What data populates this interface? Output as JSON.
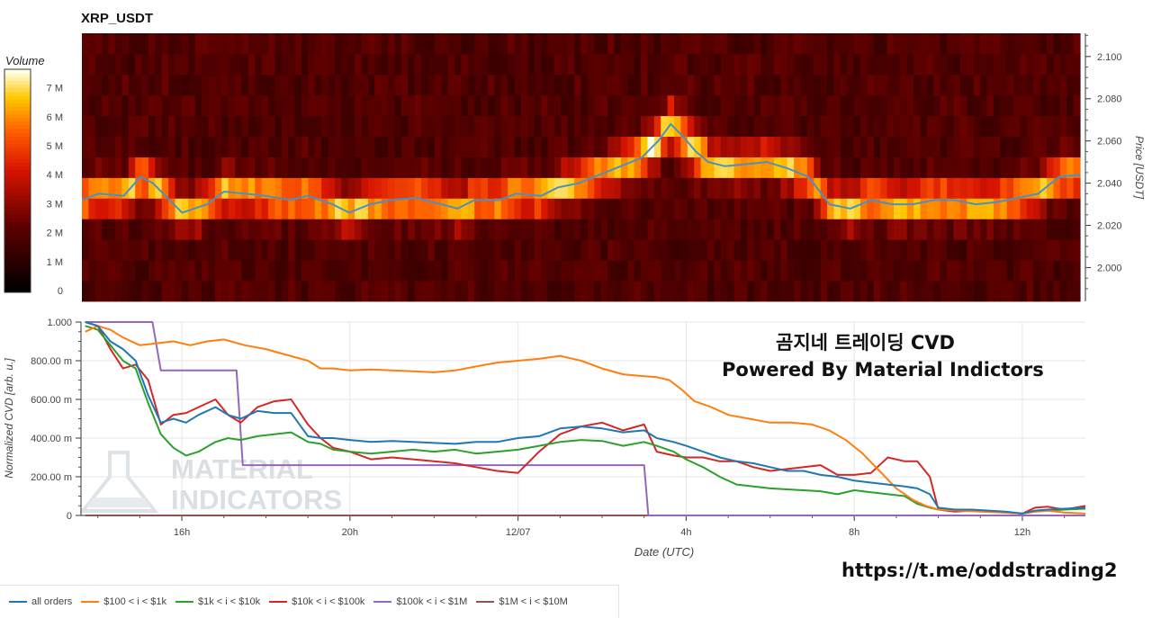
{
  "title": "XRP_USDT",
  "colorbar": {
    "label": "Volume",
    "ticks": [
      {
        "label": "0",
        "value": 0
      },
      {
        "label": "1 M",
        "value": 1
      },
      {
        "label": "2 M",
        "value": 2
      },
      {
        "label": "3 M",
        "value": 3
      },
      {
        "label": "4 M",
        "value": 4
      },
      {
        "label": "5 M",
        "value": 5
      },
      {
        "label": "6 M",
        "value": 6
      },
      {
        "label": "7 M",
        "value": 7
      }
    ],
    "range": [
      0,
      7.7
    ]
  },
  "watermark": {
    "line1": "MATERIAL",
    "line2": "INDICATORS"
  },
  "overlay": {
    "korean_title": "곰지네 트레이딩 CVD",
    "powered_by": "Powered By Material Indictors",
    "url": "https://t.me/oddstrading2"
  },
  "colors": {
    "all_orders": "#1f77b4",
    "b100_1k": "#ff7f0e",
    "b1k_10k": "#2ca02c",
    "b10k_100k": "#d62728",
    "b100k_1m": "#9467bd",
    "b1m_10m": "#8c564b",
    "price_line": "#4a90c8"
  },
  "chart_data": [
    {
      "type": "heatmap",
      "title": "XRP_USDT",
      "ylabel": "Price [USDT]",
      "yticks": [
        "2.000",
        "2.020",
        "2.040",
        "2.060",
        "2.080",
        "2.100"
      ],
      "ylim": [
        1.984,
        2.111
      ],
      "xlim": [
        13.6,
        37.5
      ],
      "colorbar_label": "Volume",
      "price_line": {
        "x": [
          13.6,
          14.0,
          14.6,
          15.0,
          15.3,
          15.7,
          16.0,
          16.6,
          17.0,
          17.5,
          18.0,
          18.6,
          19.0,
          19.6,
          20.0,
          20.5,
          21.0,
          21.6,
          22.0,
          22.6,
          23.0,
          23.6,
          24.0,
          24.6,
          25.0,
          25.5,
          26.0,
          26.5,
          27.0,
          27.4,
          27.7,
          28.0,
          28.3,
          28.6,
          29.0,
          29.5,
          30.0,
          30.5,
          31.0,
          31.5,
          32.0,
          32.5,
          33.0,
          33.5,
          34.0,
          34.5,
          35.0,
          35.5,
          36.0,
          36.5,
          37.0,
          37.5
        ],
        "y": [
          2.032,
          2.035,
          2.034,
          2.043,
          2.04,
          2.032,
          2.026,
          2.03,
          2.036,
          2.035,
          2.034,
          2.032,
          2.034,
          2.03,
          2.026,
          2.03,
          2.032,
          2.033,
          2.031,
          2.028,
          2.032,
          2.032,
          2.035,
          2.034,
          2.038,
          2.04,
          2.044,
          2.048,
          2.052,
          2.06,
          2.068,
          2.062,
          2.055,
          2.05,
          2.048,
          2.049,
          2.05,
          2.047,
          2.043,
          2.03,
          2.028,
          2.032,
          2.03,
          2.03,
          2.032,
          2.032,
          2.03,
          2.031,
          2.033,
          2.035,
          2.043,
          2.044
        ]
      }
    },
    {
      "type": "line",
      "xlabel": "Date (UTC)",
      "ylabel": "Normalized CVD [arb. u.]",
      "xlim": [
        13.6,
        37.5
      ],
      "ylim": [
        0,
        1000
      ],
      "xticks": [
        {
          "label": "16h",
          "value": 16
        },
        {
          "label": "20h",
          "value": 20
        },
        {
          "label": "12/07",
          "value": 24
        },
        {
          "label": "4h",
          "value": 28
        },
        {
          "label": "8h",
          "value": 32
        },
        {
          "label": "12h",
          "value": 36
        }
      ],
      "yticks": [
        {
          "label": "0",
          "value": 0
        },
        {
          "label": "200.00 m",
          "value": 200
        },
        {
          "label": "400.00 m",
          "value": 400
        },
        {
          "label": "600.00 m",
          "value": 600
        },
        {
          "label": "800.00 m",
          "value": 800
        },
        {
          "label": "1.000",
          "value": 1000
        }
      ],
      "legend_position": "bottom",
      "series": [
        {
          "name": "all orders",
          "color_key": "all_orders",
          "x": [
            13.7,
            14.0,
            14.3,
            14.6,
            14.9,
            15.2,
            15.5,
            15.8,
            16.1,
            16.4,
            16.8,
            17.1,
            17.4,
            17.8,
            18.2,
            18.6,
            19.0,
            19.3,
            19.6,
            20.0,
            20.5,
            21.0,
            21.5,
            22.0,
            22.5,
            23.0,
            23.5,
            24.0,
            24.5,
            25.0,
            25.5,
            26.0,
            26.5,
            27.0,
            27.3,
            27.7,
            28.0,
            28.4,
            28.8,
            29.2,
            29.6,
            30.0,
            30.4,
            30.8,
            31.2,
            31.6,
            32.0,
            32.4,
            32.8,
            33.2,
            33.5,
            33.8,
            34.0,
            34.4,
            34.8,
            35.2,
            35.6,
            36.0,
            36.3,
            36.6,
            37.0,
            37.5
          ],
          "y": [
            1000,
            980,
            900,
            860,
            800,
            620,
            480,
            500,
            480,
            520,
            560,
            520,
            500,
            540,
            530,
            530,
            410,
            400,
            400,
            390,
            380,
            385,
            380,
            375,
            370,
            380,
            380,
            400,
            410,
            450,
            460,
            450,
            430,
            440,
            400,
            380,
            360,
            330,
            300,
            280,
            270,
            250,
            230,
            230,
            210,
            200,
            180,
            170,
            160,
            150,
            140,
            110,
            40,
            30,
            30,
            25,
            20,
            10,
            25,
            30,
            35,
            40
          ]
        },
        {
          "name": "$100 < i < $1k",
          "color_key": "b100_1k",
          "x": [
            13.7,
            14.0,
            14.3,
            14.6,
            15.0,
            15.4,
            15.8,
            16.2,
            16.6,
            17.0,
            17.5,
            18.0,
            18.5,
            19.0,
            19.3,
            19.6,
            20.0,
            20.5,
            21.0,
            21.5,
            22.0,
            22.5,
            23.0,
            23.5,
            24.0,
            24.5,
            25.0,
            25.5,
            26.0,
            26.5,
            27.0,
            27.3,
            27.6,
            27.9,
            28.2,
            28.6,
            29.0,
            29.5,
            30.0,
            30.5,
            31.0,
            31.4,
            31.8,
            32.2,
            32.6,
            33.0,
            33.4,
            33.7,
            34.0,
            34.5,
            35.0,
            35.5,
            36.0,
            36.3,
            36.6,
            37.0,
            37.5
          ],
          "y": [
            950,
            980,
            960,
            920,
            880,
            890,
            900,
            880,
            900,
            910,
            880,
            860,
            830,
            800,
            760,
            760,
            750,
            755,
            750,
            745,
            740,
            750,
            770,
            790,
            800,
            810,
            825,
            800,
            760,
            730,
            720,
            715,
            700,
            650,
            590,
            560,
            520,
            500,
            480,
            480,
            470,
            440,
            390,
            320,
            230,
            140,
            80,
            50,
            30,
            25,
            20,
            15,
            10,
            20,
            25,
            15,
            10
          ]
        },
        {
          "name": "$1k < i < $10k",
          "color_key": "b1k_10k",
          "x": [
            13.7,
            14.0,
            14.3,
            14.6,
            14.9,
            15.2,
            15.5,
            15.8,
            16.1,
            16.4,
            16.8,
            17.1,
            17.4,
            17.8,
            18.2,
            18.6,
            19.0,
            19.3,
            19.6,
            20.0,
            20.5,
            21.0,
            21.5,
            22.0,
            22.5,
            23.0,
            23.5,
            24.0,
            24.5,
            25.0,
            25.5,
            26.0,
            26.5,
            27.0,
            27.3,
            27.7,
            28.0,
            28.4,
            28.8,
            29.2,
            29.6,
            30.0,
            30.4,
            30.8,
            31.2,
            31.6,
            32.0,
            32.4,
            32.8,
            33.2,
            33.5,
            33.8,
            34.0,
            34.4,
            34.8,
            35.2,
            35.6,
            36.0,
            36.3,
            36.6,
            37.0,
            37.5
          ],
          "y": [
            980,
            960,
            880,
            800,
            760,
            580,
            420,
            350,
            310,
            330,
            380,
            400,
            390,
            410,
            420,
            430,
            380,
            370,
            340,
            330,
            320,
            330,
            340,
            330,
            340,
            320,
            330,
            340,
            360,
            380,
            390,
            385,
            360,
            380,
            360,
            330,
            290,
            250,
            200,
            160,
            150,
            140,
            135,
            130,
            125,
            110,
            130,
            120,
            110,
            100,
            60,
            40,
            30,
            30,
            25,
            20,
            15,
            10,
            20,
            25,
            30,
            35
          ]
        },
        {
          "name": "$10k < i < $100k",
          "color_key": "b10k_100k",
          "x": [
            13.7,
            14.0,
            14.3,
            14.6,
            14.9,
            15.2,
            15.5,
            15.8,
            16.1,
            16.4,
            16.8,
            17.1,
            17.4,
            17.8,
            18.2,
            18.6,
            19.0,
            19.3,
            19.6,
            20.0,
            20.5,
            21.0,
            21.5,
            22.0,
            22.5,
            23.0,
            23.5,
            24.0,
            24.5,
            25.0,
            25.5,
            26.0,
            26.5,
            27.0,
            27.3,
            27.7,
            28.0,
            28.4,
            28.8,
            29.2,
            29.6,
            30.0,
            30.4,
            30.8,
            31.2,
            31.6,
            32.0,
            32.4,
            32.8,
            33.2,
            33.5,
            33.8,
            34.0,
            34.4,
            34.8,
            35.2,
            35.6,
            36.0,
            36.3,
            36.6,
            37.0,
            37.5
          ],
          "y": [
            1000,
            980,
            860,
            760,
            780,
            700,
            470,
            520,
            530,
            560,
            600,
            520,
            480,
            560,
            590,
            600,
            470,
            400,
            350,
            330,
            290,
            300,
            290,
            280,
            270,
            250,
            230,
            220,
            330,
            420,
            460,
            480,
            440,
            470,
            330,
            310,
            300,
            300,
            280,
            280,
            250,
            230,
            240,
            250,
            260,
            210,
            210,
            220,
            300,
            280,
            280,
            200,
            30,
            20,
            25,
            20,
            15,
            10,
            40,
            45,
            30,
            50
          ]
        },
        {
          "name": "$100k < i < $1M",
          "color_key": "b100k_1m",
          "x": [
            13.7,
            15.3,
            15.5,
            17.3,
            17.45,
            27.0,
            27.1,
            37.5
          ],
          "y": [
            1000,
            1000,
            750,
            750,
            260,
            260,
            0,
            0
          ]
        },
        {
          "name": "$1M < i < $10M",
          "color_key": "b1m_10m",
          "x": [
            13.7,
            37.5
          ],
          "y": [
            0,
            0
          ]
        }
      ]
    }
  ]
}
